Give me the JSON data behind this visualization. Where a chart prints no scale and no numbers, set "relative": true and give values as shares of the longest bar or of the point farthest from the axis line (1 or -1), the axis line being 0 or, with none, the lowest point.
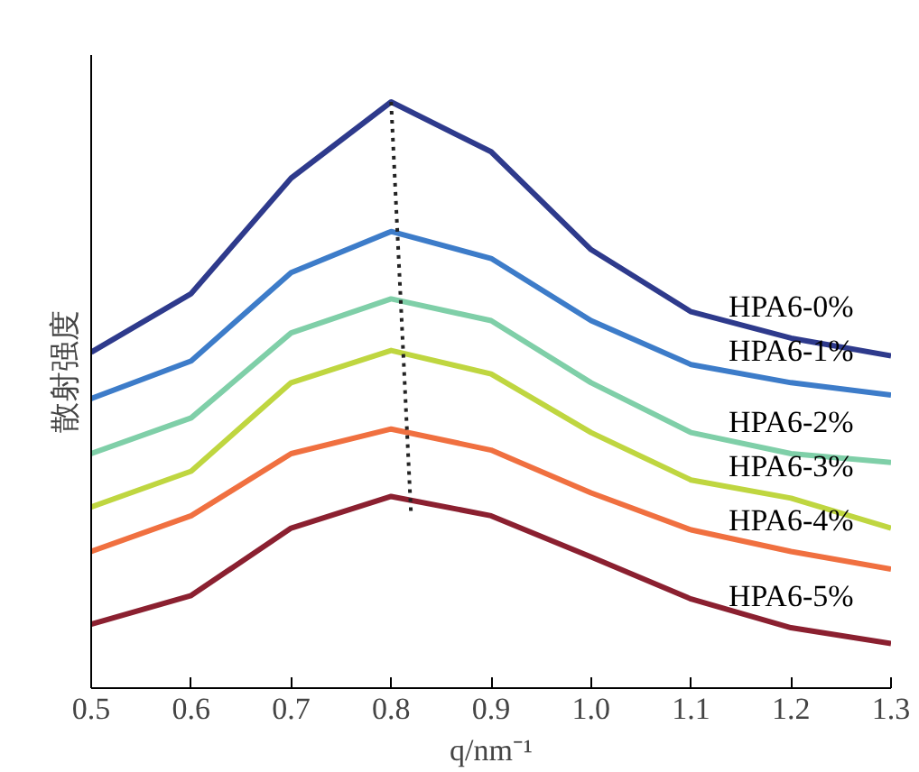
{
  "chart_data": {
    "type": "line",
    "relative": true,
    "xlabel": "q/nm⁻¹",
    "ylabel": "散射强度",
    "x": [
      0.5,
      0.6,
      0.7,
      0.8,
      0.9,
      1.0,
      1.1,
      1.2,
      1.3
    ],
    "xlim": [
      0.5,
      1.3
    ],
    "xticks": [
      {
        "value": 0.5,
        "label": "0.5"
      },
      {
        "value": 0.6,
        "label": "0.6"
      },
      {
        "value": 0.7,
        "label": "0.7"
      },
      {
        "value": 0.8,
        "label": "0.8"
      },
      {
        "value": 0.9,
        "label": "0.9"
      },
      {
        "value": 1.0,
        "label": "1.0"
      },
      {
        "value": 1.1,
        "label": "1.1"
      },
      {
        "value": 1.2,
        "label": "1.2"
      },
      {
        "value": 1.3,
        "label": "1.3"
      }
    ],
    "grid": false,
    "series": [
      {
        "name": "HPA6-0%",
        "color": "#2e3a8c",
        "values": [
          0.573,
          0.673,
          0.87,
          1.0,
          0.915,
          0.748,
          0.642,
          0.597,
          0.567
        ]
      },
      {
        "name": "HPA6-1%",
        "color": "#3d7cc9",
        "values": [
          0.494,
          0.558,
          0.709,
          0.779,
          0.733,
          0.627,
          0.552,
          0.521,
          0.5
        ]
      },
      {
        "name": "HPA6-2%",
        "color": "#7fcfa8",
        "values": [
          0.4,
          0.461,
          0.606,
          0.664,
          0.627,
          0.521,
          0.436,
          0.4,
          0.385
        ]
      },
      {
        "name": "HPA6-3%",
        "color": "#bfd640",
        "values": [
          0.309,
          0.37,
          0.521,
          0.576,
          0.536,
          0.436,
          0.355,
          0.324,
          0.273
        ]
      },
      {
        "name": "HPA6-4%",
        "color": "#f07040",
        "values": [
          0.233,
          0.294,
          0.4,
          0.442,
          0.406,
          0.333,
          0.27,
          0.233,
          0.203
        ]
      },
      {
        "name": "HPA6-5%",
        "color": "#8b2030",
        "values": [
          0.109,
          0.158,
          0.273,
          0.327,
          0.294,
          0.224,
          0.152,
          0.103,
          0.076
        ]
      },
      {
        "color": "#222222",
        "x": [
          0.8,
          0.82
        ],
        "values": [
          1.0,
          0.294
        ],
        "line_style": "dotted"
      }
    ]
  }
}
